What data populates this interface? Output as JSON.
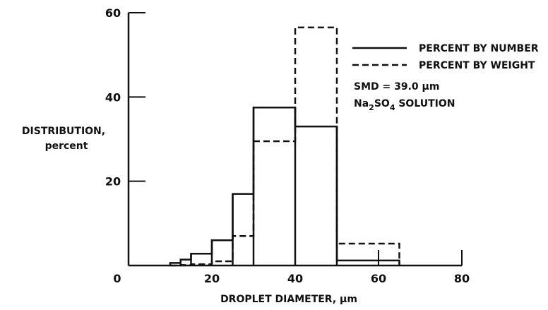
{
  "chart_data": {
    "type": "histogram",
    "xlabel": "DROPLET DIAMETER, μm",
    "ylabel_line1": "DISTRIBUTION,",
    "ylabel_line2": "percent",
    "xlim": [
      0,
      80
    ],
    "ylim": [
      0,
      60
    ],
    "x_ticks": [
      0,
      20,
      40,
      60,
      80
    ],
    "y_ticks": [
      0,
      20,
      40,
      60
    ],
    "x_tick_labels": [
      "0",
      "20",
      "40",
      "60",
      "80"
    ],
    "y_tick_labels": [
      "0",
      "20",
      "40",
      "60"
    ],
    "grid": false,
    "legend_position": "top-right",
    "bin_edges": [
      10,
      12.5,
      15,
      20,
      25,
      30,
      40,
      50,
      65
    ],
    "series": [
      {
        "name": "PERCENT BY NUMBER",
        "line_style": "solid",
        "values": [
          0.6,
          1.4,
          2.8,
          6.0,
          17.0,
          37.5,
          33.0,
          1.2
        ]
      },
      {
        "name": "PERCENT BY WEIGHT",
        "line_style": "dashed",
        "values": [
          0,
          0.1,
          0.3,
          1.0,
          7.0,
          29.5,
          56.5,
          5.2
        ]
      }
    ],
    "annotations": {
      "smd": "SMD = 39.0 μm",
      "solution_prefix": "Na",
      "solution_sub1": "2",
      "solution_mid": "SO",
      "solution_sub2": "4",
      "solution_suffix": " SOLUTION"
    }
  }
}
